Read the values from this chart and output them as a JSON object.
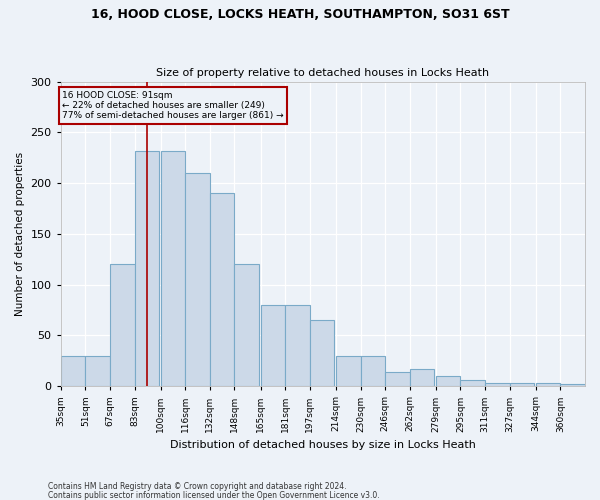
{
  "title1": "16, HOOD CLOSE, LOCKS HEATH, SOUTHAMPTON, SO31 6ST",
  "title2": "Size of property relative to detached houses in Locks Heath",
  "xlabel": "Distribution of detached houses by size in Locks Heath",
  "ylabel": "Number of detached properties",
  "footnote1": "Contains HM Land Registry data © Crown copyright and database right 2024.",
  "footnote2": "Contains public sector information licensed under the Open Government Licence v3.0.",
  "annotation_line1": "16 HOOD CLOSE: 91sqm",
  "annotation_line2": "← 22% of detached houses are smaller (249)",
  "annotation_line3": "77% of semi-detached houses are larger (861) →",
  "bar_color": "#ccd9e8",
  "bar_edge_color": "#7aaac8",
  "vline_color": "#aa0000",
  "vline_x": 91,
  "categories": [
    "35sqm",
    "51sqm",
    "67sqm",
    "83sqm",
    "100sqm",
    "116sqm",
    "132sqm",
    "148sqm",
    "165sqm",
    "181sqm",
    "197sqm",
    "214sqm",
    "230sqm",
    "246sqm",
    "262sqm",
    "279sqm",
    "295sqm",
    "311sqm",
    "327sqm",
    "344sqm",
    "360sqm"
  ],
  "bin_left_edges": [
    35,
    51,
    67,
    83,
    100,
    116,
    132,
    148,
    165,
    181,
    197,
    214,
    230,
    246,
    262,
    279,
    295,
    311,
    327,
    344,
    360
  ],
  "bin_width": 16,
  "values": [
    30,
    30,
    120,
    232,
    232,
    210,
    190,
    120,
    80,
    80,
    65,
    30,
    30,
    14,
    17,
    10,
    6,
    3,
    3,
    3,
    2
  ],
  "ylim": [
    0,
    300
  ],
  "yticks": [
    0,
    50,
    100,
    150,
    200,
    250,
    300
  ],
  "background_color": "#edf2f8",
  "grid_color": "#ffffff",
  "ann_box_color": "#edf2f8",
  "ann_border_color": "#aa0000"
}
